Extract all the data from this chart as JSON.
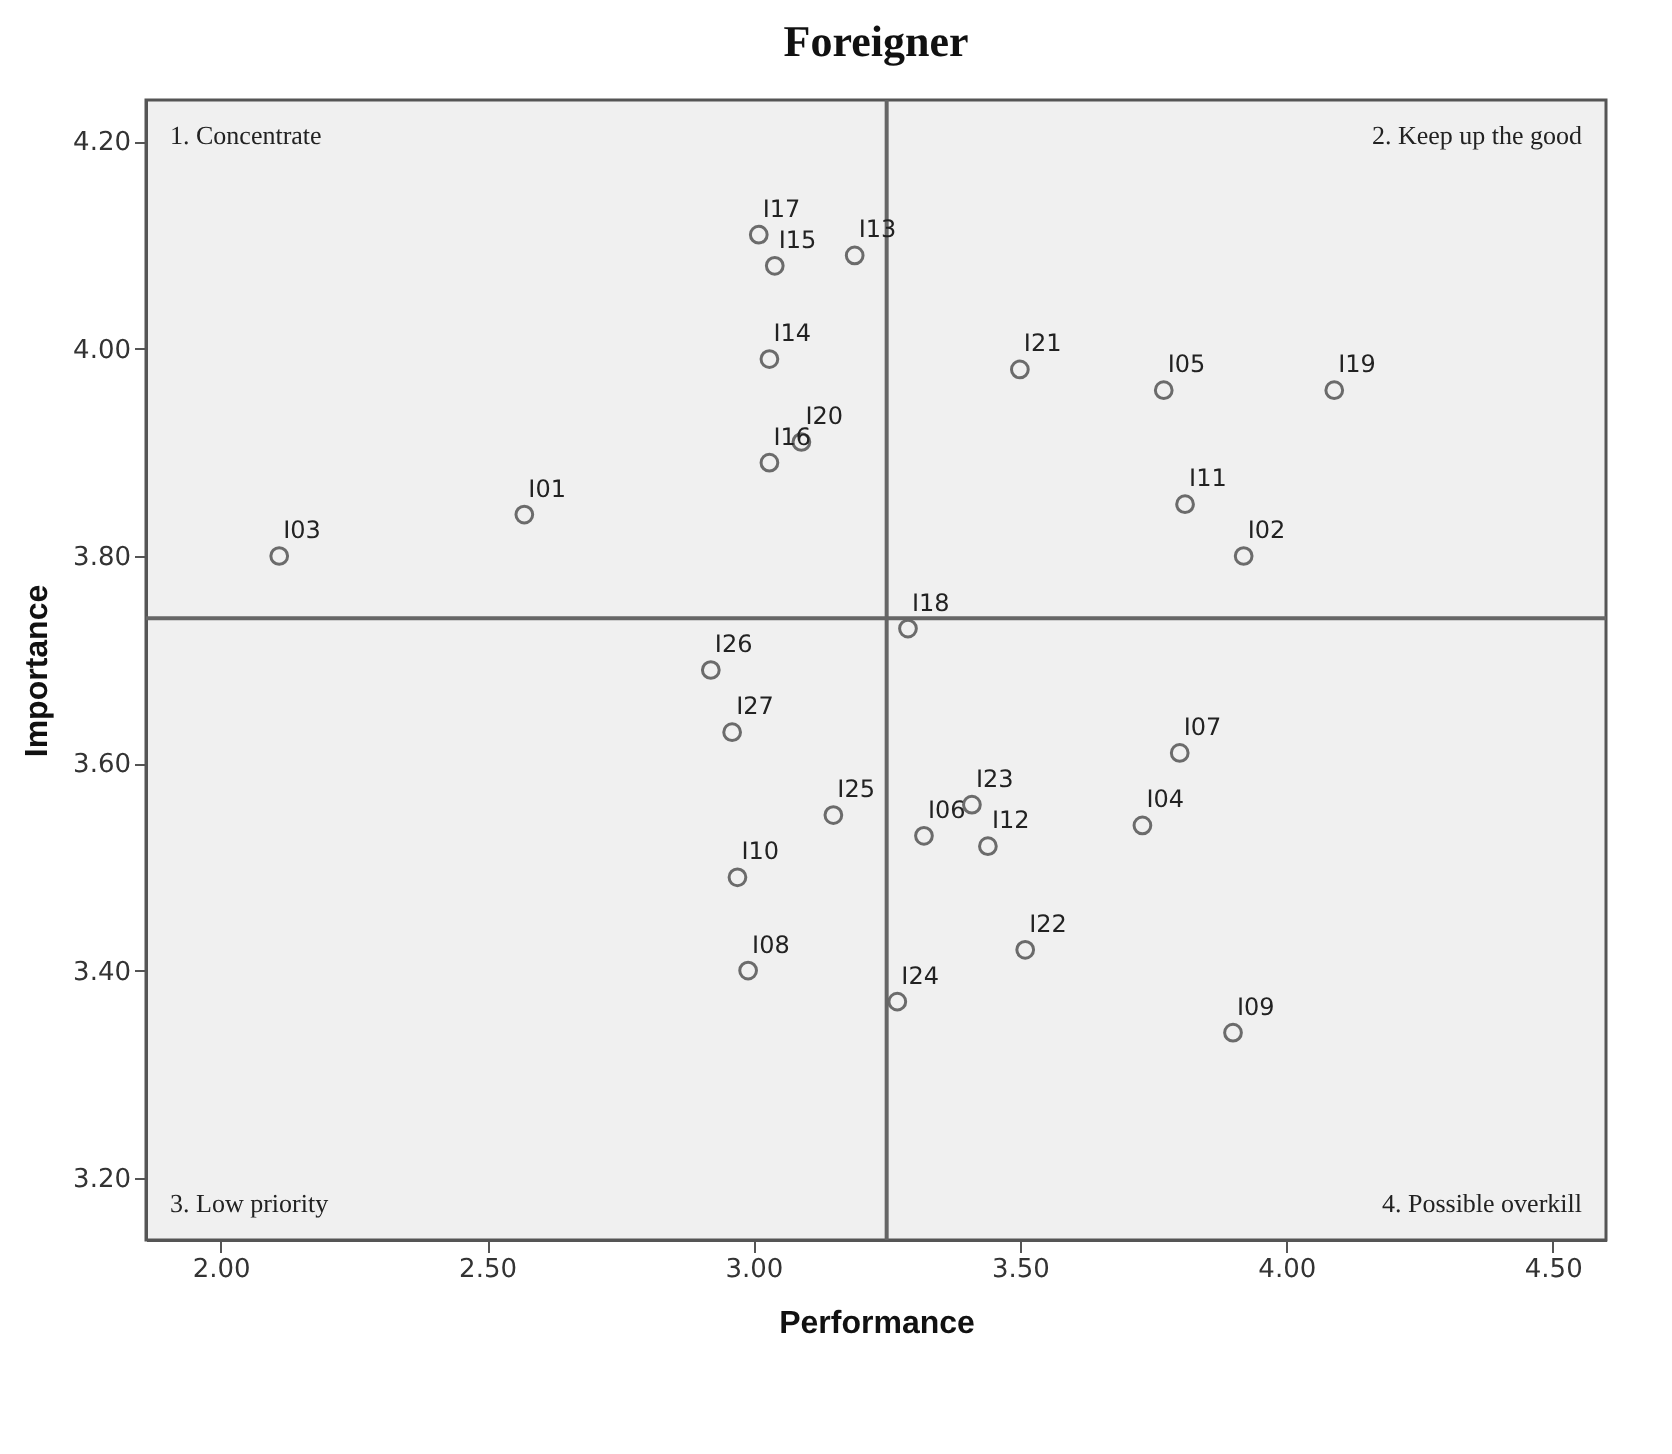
{
  "chart_data": {
    "type": "scatter",
    "title": "Foreigner",
    "xlabel": "Performance",
    "ylabel": "Importance",
    "x": [
      2.11,
      2.57,
      3.01,
      3.04,
      3.19,
      3.03,
      3.09,
      3.03,
      3.5,
      3.77,
      4.09,
      3.81,
      3.92,
      3.29,
      2.92,
      2.96,
      3.15,
      2.97,
      2.99,
      3.27,
      3.41,
      3.32,
      3.44,
      3.73,
      3.8,
      3.51,
      3.9
    ],
    "series": [
      {
        "color": "#333333",
        "values": [
          3.8,
          3.84,
          4.11,
          4.08,
          4.09,
          3.99,
          3.91,
          3.89,
          3.98,
          3.96,
          3.96,
          3.85,
          3.8,
          3.73,
          3.69,
          3.63,
          3.55,
          3.49,
          3.4,
          3.37,
          3.56,
          3.53,
          3.52,
          3.54,
          3.61,
          3.42,
          3.34
        ]
      }
    ],
    "marker": "circle",
    "grid": false,
    "xlim": [
      1.86,
      4.6
    ],
    "ylim": [
      3.14,
      4.24
    ],
    "xticks": [
      {
        "value": 2,
        "label": "2.00"
      },
      {
        "value": 2.5,
        "label": "2.50"
      },
      {
        "value": 3,
        "label": "3.00"
      },
      {
        "value": 3.5,
        "label": "3.50"
      },
      {
        "value": 4,
        "label": "4.00"
      },
      {
        "value": 4.5,
        "label": "4.50"
      }
    ],
    "yticks": [
      {
        "value": 3.2,
        "label": "3.20"
      },
      {
        "value": 3.4,
        "label": "3.40"
      },
      {
        "value": 3.6,
        "label": "3.60"
      },
      {
        "value": 3.8,
        "label": "3.80"
      },
      {
        "value": 4.0,
        "label": "4.00"
      },
      {
        "value": 4.2,
        "label": "4.20"
      }
    ],
    "ref_lines": [
      {
        "axis": "x",
        "value": 3.25,
        "color": "#666666"
      },
      {
        "axis": "y",
        "value": 3.74,
        "color": "#666666"
      }
    ],
    "annotations": [
      "1. Concentrate",
      "2. Keep up the good",
      "3. Low priority",
      "4. Possible overkill",
      {
        "text": "I03",
        "x": 2.11,
        "y": 3.8
      },
      {
        "text": "I01",
        "x": 2.57,
        "y": 3.84
      },
      {
        "text": "I17",
        "x": 3.01,
        "y": 4.11
      },
      {
        "text": "I15",
        "x": 3.04,
        "y": 4.08
      },
      {
        "text": "I13",
        "x": 3.19,
        "y": 4.09
      },
      {
        "text": "I14",
        "x": 3.03,
        "y": 3.99
      },
      {
        "text": "I20",
        "x": 3.09,
        "y": 3.91
      },
      {
        "text": "I16",
        "x": 3.03,
        "y": 3.89
      },
      {
        "text": "I21",
        "x": 3.5,
        "y": 3.98
      },
      {
        "text": "I05",
        "x": 3.77,
        "y": 3.96
      },
      {
        "text": "I19",
        "x": 4.09,
        "y": 3.96
      },
      {
        "text": "I11",
        "x": 3.81,
        "y": 3.85
      },
      {
        "text": "I02",
        "x": 3.92,
        "y": 3.8
      },
      {
        "text": "I18",
        "x": 3.29,
        "y": 3.73
      },
      {
        "text": "I26",
        "x": 2.92,
        "y": 3.69
      },
      {
        "text": "I27",
        "x": 2.96,
        "y": 3.63
      },
      {
        "text": "I25",
        "x": 3.15,
        "y": 3.55
      },
      {
        "text": "I10",
        "x": 2.97,
        "y": 3.49
      },
      {
        "text": "I08",
        "x": 2.99,
        "y": 3.4
      },
      {
        "text": "I24",
        "x": 3.27,
        "y": 3.37
      },
      {
        "text": "I23",
        "x": 3.41,
        "y": 3.56
      },
      {
        "text": "I06",
        "x": 3.32,
        "y": 3.53
      },
      {
        "text": "I12",
        "x": 3.44,
        "y": 3.52
      },
      {
        "text": "I04",
        "x": 3.73,
        "y": 3.54
      },
      {
        "text": "I07",
        "x": 3.8,
        "y": 3.61
      },
      {
        "text": "I22",
        "x": 3.51,
        "y": 3.42
      },
      {
        "text": "I09",
        "x": 3.9,
        "y": 3.34
      }
    ]
  }
}
